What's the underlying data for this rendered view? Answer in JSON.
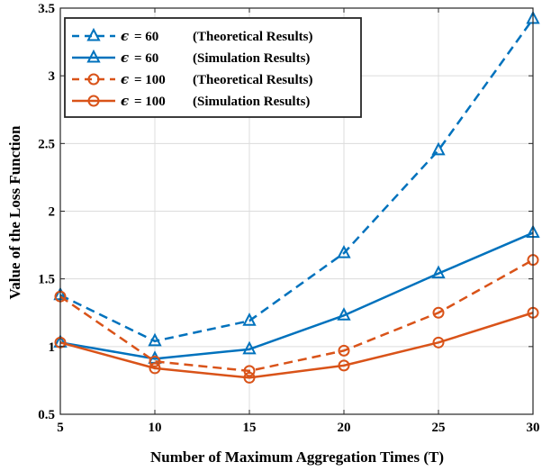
{
  "chart_data": {
    "type": "line",
    "title": "",
    "xlabel": "Number of Maximum Aggregation Times (T)",
    "ylabel": "Value of the Loss Function",
    "x": [
      5,
      10,
      15,
      20,
      25,
      30
    ],
    "xlim": [
      5,
      30
    ],
    "ylim": [
      0.5,
      3.5
    ],
    "xticks": [
      "5",
      "10",
      "15",
      "20",
      "25",
      "30"
    ],
    "yticks": [
      "0.5",
      "1",
      "1.5",
      "2",
      "2.5",
      "3",
      "3.5"
    ],
    "grid": true,
    "legend_position": "top-left",
    "series": [
      {
        "name": "ϵ =  60  (Theoretical Results)",
        "eps_symbol": "ϵ",
        "eps_value": "=  60",
        "description": "(Theoretical Results)",
        "values": [
          1.38,
          1.04,
          1.19,
          1.69,
          2.45,
          3.42
        ],
        "color": "#0072BD",
        "dash": "dashed",
        "marker": "triangle"
      },
      {
        "name": "ϵ =  60  (Simulation Results)",
        "eps_symbol": "ϵ",
        "eps_value": "=  60",
        "description": "(Simulation Results)",
        "values": [
          1.03,
          0.91,
          0.98,
          1.23,
          1.54,
          1.84
        ],
        "color": "#0072BD",
        "dash": "solid",
        "marker": "triangle"
      },
      {
        "name": "ϵ = 100 (Theoretical Results)",
        "eps_symbol": "ϵ",
        "eps_value": "= 100",
        "description": "(Theoretical Results)",
        "values": [
          1.37,
          0.89,
          0.82,
          0.97,
          1.25,
          1.64
        ],
        "color": "#D95319",
        "dash": "dashed",
        "marker": "circle"
      },
      {
        "name": "ϵ = 100 (Simulation Results)",
        "eps_symbol": "ϵ",
        "eps_value": "= 100",
        "description": "(Simulation Results)",
        "values": [
          1.03,
          0.84,
          0.77,
          0.86,
          1.03,
          1.25
        ],
        "color": "#D95319",
        "dash": "solid",
        "marker": "circle"
      }
    ]
  }
}
